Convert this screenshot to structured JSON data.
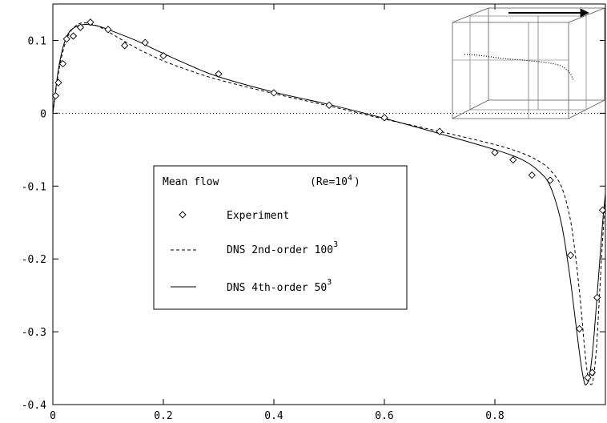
{
  "chart_data": {
    "type": "line",
    "title": "",
    "xlabel": "",
    "ylabel": "",
    "xlim": [
      0,
      1
    ],
    "ylim": [
      -0.4,
      0.15
    ],
    "grid": false,
    "x_ticks": [
      0,
      0.2,
      0.4,
      0.6,
      0.8
    ],
    "x_tick_labels": [
      "0",
      "0.2",
      "0.4",
      "0.6",
      "0.8"
    ],
    "y_ticks": [
      0.1,
      0,
      -0.1,
      -0.2,
      -0.3,
      -0.4
    ],
    "y_tick_labels": [
      "0.1",
      "0",
      "-0.1",
      "-0.2",
      "-0.3",
      "-0.4"
    ],
    "zero_line": true,
    "legend": {
      "title": "Mean flow",
      "title_note": "(Re=10",
      "title_note_sup": "4",
      "title_note_end": ")",
      "placement": "center-left",
      "entries": [
        {
          "label": "Experiment",
          "marker": "diamond"
        },
        {
          "label": "DNS 2nd-order 100",
          "sup": "3",
          "style": "dashed"
        },
        {
          "label": "DNS 4th-order 50",
          "sup": "3",
          "style": "solid"
        }
      ]
    },
    "series": [
      {
        "name": "Experiment",
        "style": "markers",
        "x": [
          0.005,
          0.01,
          0.018,
          0.025,
          0.037,
          0.05,
          0.068,
          0.1,
          0.13,
          0.167,
          0.2,
          0.3,
          0.4,
          0.5,
          0.6,
          0.7,
          0.8,
          0.833,
          0.867,
          0.9,
          0.937,
          0.953,
          0.968,
          0.976,
          0.985,
          0.995
        ],
        "y": [
          0.024,
          0.042,
          0.068,
          0.102,
          0.106,
          0.118,
          0.125,
          0.115,
          0.093,
          0.097,
          0.079,
          0.054,
          0.028,
          0.011,
          -0.006,
          -0.025,
          -0.054,
          -0.064,
          -0.085,
          -0.092,
          -0.195,
          -0.296,
          -0.363,
          -0.356,
          -0.253,
          -0.133
        ]
      },
      {
        "name": "DNS 2nd-order 100",
        "style": "dashed",
        "x": [
          0,
          0.01,
          0.02,
          0.03,
          0.045,
          0.06,
          0.08,
          0.1,
          0.15,
          0.2,
          0.25,
          0.3,
          0.4,
          0.5,
          0.6,
          0.7,
          0.8,
          0.85,
          0.88,
          0.9,
          0.92,
          0.935,
          0.945,
          0.955,
          0.962,
          0.968,
          0.973,
          0.978,
          0.984,
          0.99,
          0.996,
          1.0
        ],
        "y": [
          0,
          0.055,
          0.09,
          0.11,
          0.122,
          0.124,
          0.12,
          0.112,
          0.09,
          0.072,
          0.058,
          0.046,
          0.027,
          0.01,
          -0.008,
          -0.025,
          -0.043,
          -0.055,
          -0.066,
          -0.078,
          -0.1,
          -0.14,
          -0.19,
          -0.26,
          -0.32,
          -0.36,
          -0.372,
          -0.365,
          -0.32,
          -0.24,
          -0.16,
          -0.12
        ]
      },
      {
        "name": "DNS 4th-order 50",
        "style": "solid",
        "x": [
          0,
          0.01,
          0.02,
          0.03,
          0.045,
          0.06,
          0.08,
          0.1,
          0.15,
          0.2,
          0.25,
          0.3,
          0.4,
          0.5,
          0.6,
          0.7,
          0.8,
          0.85,
          0.88,
          0.9,
          0.92,
          0.935,
          0.945,
          0.955,
          0.962,
          0.966,
          0.97,
          0.975,
          0.98,
          0.985,
          0.99,
          0.995,
          1.0
        ],
        "y": [
          0,
          0.06,
          0.095,
          0.112,
          0.12,
          0.122,
          0.12,
          0.115,
          0.1,
          0.082,
          0.065,
          0.05,
          0.029,
          0.012,
          -0.007,
          -0.028,
          -0.05,
          -0.064,
          -0.08,
          -0.1,
          -0.15,
          -0.22,
          -0.28,
          -0.34,
          -0.37,
          -0.372,
          -0.365,
          -0.34,
          -0.3,
          -0.25,
          -0.2,
          -0.15,
          -0.11
        ]
      }
    ]
  }
}
